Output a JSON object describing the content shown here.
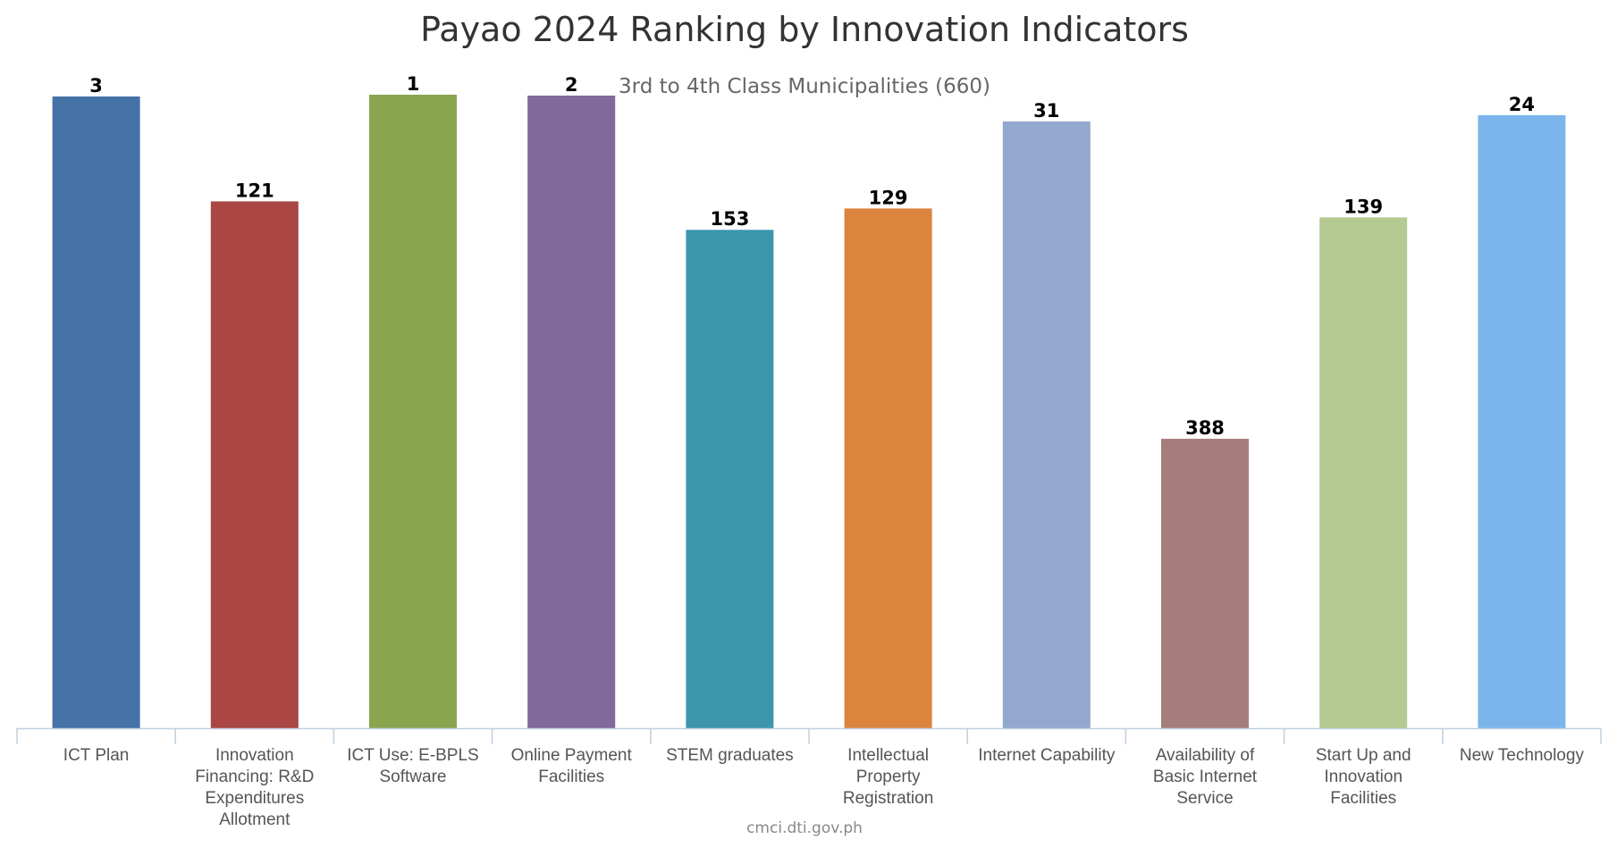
{
  "chart_data": {
    "type": "bar",
    "title": "Payao 2024 Ranking by Innovation Indicators",
    "subtitle": "3rd to 4th Class Municipalities (660)",
    "credits": "cmci.dti.gov.ph",
    "categories": [
      "ICT Plan",
      "Innovation Financing: R&D Expenditures Allotment",
      "ICT Use: E-BPLS Software",
      "Online Payment Facilities",
      "STEM graduates",
      "Intellectual Property Registration",
      "Internet Capability",
      "Availability of Basic Internet Service",
      "Start Up and Innovation Facilities",
      "New Technology"
    ],
    "category_lines": [
      [
        "ICT Plan"
      ],
      [
        "Innovation",
        "Financing: R&D",
        "Expenditures",
        "Allotment"
      ],
      [
        "ICT Use: E-BPLS",
        "Software"
      ],
      [
        "Online Payment",
        "Facilities"
      ],
      [
        "STEM graduates"
      ],
      [
        "Intellectual",
        "Property",
        "Registration"
      ],
      [
        "Internet Capability"
      ],
      [
        "Availability of",
        "Basic Internet",
        "Service"
      ],
      [
        "Start Up and",
        "Innovation",
        "Facilities"
      ],
      [
        "New Technology"
      ]
    ],
    "values": [
      3,
      121,
      1,
      2,
      153,
      129,
      31,
      388,
      139,
      24
    ],
    "axis": {
      "reversed": true,
      "ylim": [
        1,
        660
      ]
    },
    "grid": false,
    "legend": "none",
    "colors": [
      "#4572a7",
      "#aa4643",
      "#89a54e",
      "#80699b",
      "#3d96ae",
      "#db843d",
      "#92a8cd",
      "#a47d7c",
      "#b5ca92",
      "#7cb5ec"
    ],
    "axis_color": "#c0d0e0"
  }
}
